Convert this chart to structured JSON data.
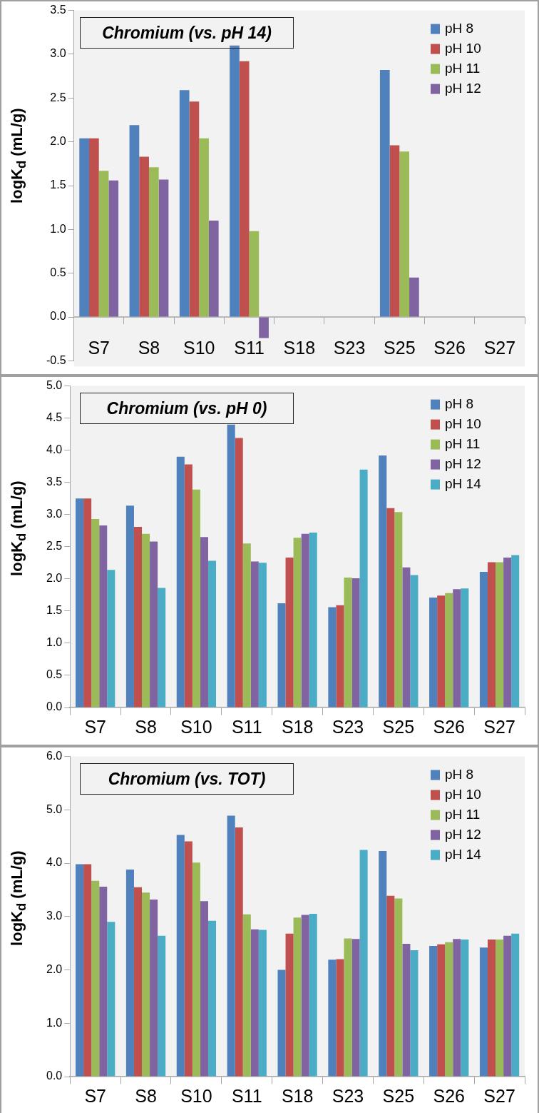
{
  "chart_data": [
    {
      "type": "bar",
      "title": "Chromium (vs. pH 14)",
      "ylabel": "logK$_{d}$ (mL/g)",
      "categories": [
        "S7",
        "S8",
        "S10",
        "S11",
        "S18",
        "S23",
        "S25",
        "S26",
        "S27"
      ],
      "series": [
        {
          "name": "pH 8",
          "color": "#4f81bd",
          "values": [
            2.04,
            2.19,
            2.59,
            3.1,
            null,
            null,
            2.82,
            null,
            null
          ]
        },
        {
          "name": "pH 10",
          "color": "#c0504d",
          "values": [
            2.04,
            1.83,
            2.46,
            2.92,
            null,
            null,
            1.96,
            null,
            null
          ]
        },
        {
          "name": "pH 11",
          "color": "#9bbb59",
          "values": [
            1.67,
            1.71,
            2.04,
            0.98,
            null,
            null,
            1.89,
            null,
            null
          ]
        },
        {
          "name": "pH 12",
          "color": "#8064a2",
          "values": [
            1.56,
            1.57,
            1.1,
            -0.24,
            null,
            null,
            0.45,
            null,
            null
          ]
        }
      ],
      "ref_lines": [
        {
          "axis": "y",
          "value": 0,
          "color": "#a6a6a6"
        }
      ],
      "ylim": [
        -0.5,
        3.5
      ],
      "yticks": [
        -0.5,
        {
          "value": 0,
          "label": "0.0"
        },
        0.5,
        {
          "value": 1,
          "label": "1.0"
        },
        1.5,
        {
          "value": 2,
          "label": "2.0"
        },
        2.5,
        {
          "value": 3,
          "label": "3.0"
        },
        3.5
      ],
      "grid": false,
      "legend": "top right"
    },
    {
      "type": "bar",
      "title": "Chromium (vs. pH 0)",
      "ylabel": "logK$_{d}$ (mL/g)",
      "categories": [
        "S7",
        "S8",
        "S10",
        "S11",
        "S18",
        "S23",
        "S25",
        "S26",
        "S27"
      ],
      "series": [
        {
          "name": "pH 8",
          "color": "#4f81bd",
          "values": [
            3.25,
            3.14,
            3.9,
            4.4,
            1.62,
            1.56,
            3.92,
            1.71,
            2.11
          ]
        },
        {
          "name": "pH 10",
          "color": "#c0504d",
          "values": [
            3.25,
            2.81,
            3.78,
            4.19,
            2.33,
            1.59,
            3.1,
            1.74,
            2.26
          ]
        },
        {
          "name": "pH 11",
          "color": "#9bbb59",
          "values": [
            2.93,
            2.7,
            3.39,
            2.55,
            2.64,
            2.02,
            3.04,
            1.78,
            2.26
          ]
        },
        {
          "name": "pH 12",
          "color": "#8064a2",
          "values": [
            2.83,
            2.58,
            2.65,
            2.27,
            2.7,
            2.01,
            2.18,
            1.84,
            2.33
          ]
        },
        {
          "name": "pH 14",
          "color": "#4bacc6",
          "values": [
            2.14,
            1.86,
            2.28,
            2.25,
            2.72,
            3.7,
            2.06,
            1.85,
            2.37
          ]
        }
      ],
      "ylim": [
        0,
        5
      ],
      "yticks": [
        {
          "value": 0,
          "label": "0.0"
        },
        0.5,
        {
          "value": 1,
          "label": "1.0"
        },
        1.5,
        {
          "value": 2,
          "label": "2.0"
        },
        2.5,
        {
          "value": 3,
          "label": "3.0"
        },
        3.5,
        {
          "value": 4,
          "label": "4.0"
        },
        4.5,
        {
          "value": 5,
          "label": "5.0"
        }
      ],
      "grid": false,
      "legend": "top right"
    },
    {
      "type": "bar",
      "title": "Chromium (vs. TOT)",
      "ylabel": "logK$_{d}$ (mL/g)",
      "categories": [
        "S7",
        "S8",
        "S10",
        "S11",
        "S18",
        "S23",
        "S25",
        "S26",
        "S27"
      ],
      "series": [
        {
          "name": "pH 8",
          "color": "#4f81bd",
          "values": [
            3.98,
            3.88,
            4.53,
            4.89,
            2.0,
            2.19,
            4.23,
            2.45,
            2.42
          ]
        },
        {
          "name": "pH 10",
          "color": "#c0504d",
          "values": [
            3.98,
            3.55,
            4.41,
            4.67,
            2.68,
            2.2,
            3.39,
            2.48,
            2.57
          ]
        },
        {
          "name": "pH 11",
          "color": "#9bbb59",
          "values": [
            3.67,
            3.45,
            4.01,
            3.04,
            2.98,
            2.59,
            3.34,
            2.52,
            2.57
          ]
        },
        {
          "name": "pH 12",
          "color": "#8064a2",
          "values": [
            3.56,
            3.32,
            3.29,
            2.76,
            3.03,
            2.58,
            2.49,
            2.58,
            2.64
          ]
        },
        {
          "name": "pH 14",
          "color": "#4bacc6",
          "values": [
            2.9,
            2.64,
            2.92,
            2.75,
            3.05,
            4.25,
            2.37,
            2.57,
            2.68
          ]
        }
      ],
      "ylim": [
        0,
        6
      ],
      "yticks": [
        {
          "value": 0,
          "label": "0.0"
        },
        {
          "value": 1,
          "label": "1.0"
        },
        {
          "value": 2,
          "label": "2.0"
        },
        {
          "value": 3,
          "label": "3.0"
        },
        {
          "value": 4,
          "label": "4.0"
        },
        {
          "value": 5,
          "label": "5.0"
        },
        {
          "value": 6,
          "label": "6.0"
        }
      ],
      "grid": false,
      "legend": "top right"
    }
  ]
}
